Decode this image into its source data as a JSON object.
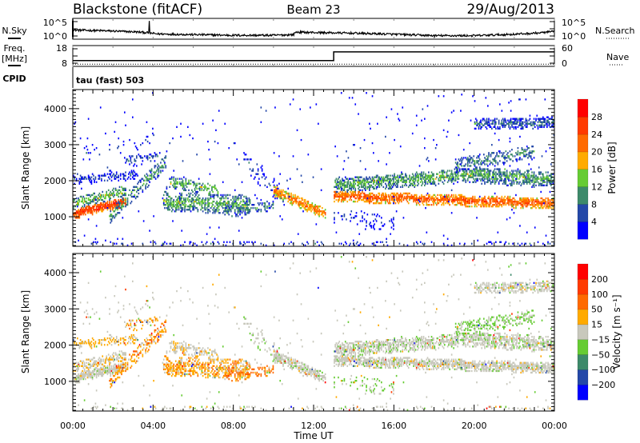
{
  "header": {
    "station": "Blackstone (fitACF)",
    "beam": "Beam 23",
    "date": "29/Aug/2013"
  },
  "noise_panel": {
    "left_label": "N.Sky",
    "right_label": "N.Search",
    "left_ticks": [
      "10^5",
      "10^0"
    ],
    "right_ticks": [
      "10^5",
      "10^0"
    ],
    "ylim_log10": [
      0,
      5
    ],
    "sky_profile_log10": [
      [
        0,
        2.6
      ],
      [
        1.5,
        2.4
      ],
      [
        3,
        2.1
      ],
      [
        3.6,
        1.9
      ],
      [
        4.2,
        1.5
      ],
      [
        6,
        1.3
      ],
      [
        8,
        1.1
      ],
      [
        10,
        1.1
      ],
      [
        11,
        1.3
      ],
      [
        11.1,
        2.0
      ],
      [
        12,
        1.9
      ],
      [
        14,
        1.7
      ],
      [
        16,
        1.4
      ],
      [
        18,
        1.0
      ],
      [
        20,
        1.0
      ],
      [
        22,
        1.4
      ],
      [
        23.3,
        1.8
      ],
      [
        24,
        2.2
      ]
    ],
    "sky_spike": {
      "time": 3.8,
      "value_log10": 5.2
    }
  },
  "freq_panel": {
    "left_label_1": "Freq.",
    "left_label_2": "[MHz]",
    "right_label": "Nave",
    "left_ticks": [
      "18",
      "8"
    ],
    "right_ticks": [
      "60",
      "0"
    ],
    "freq_lim": [
      8,
      18
    ],
    "nave_lim": [
      0,
      60
    ],
    "freq_steps": [
      [
        0,
        10.4
      ],
      [
        13,
        10.4
      ],
      [
        13,
        15.3
      ],
      [
        24,
        15.3
      ]
    ],
    "nave_value": 11
  },
  "cpid": {
    "label": "CPID",
    "value": "tau (fast) 503"
  },
  "chart_data": [
    {
      "type": "heatmap",
      "title": "Power",
      "xlabel": "Time UT",
      "ylabel": "Slant Range [km]",
      "xlim": [
        0,
        24
      ],
      "ylim": [
        180,
        4530
      ],
      "x_ticks": [
        "00:00",
        "04:00",
        "08:00",
        "12:00",
        "16:00",
        "20:00",
        "00:00"
      ],
      "y_ticks": [
        "1000",
        "2000",
        "3000",
        "4000"
      ],
      "colorbar_label": "Power [dB]",
      "colorbar_ticks": [
        "4",
        "8",
        "12",
        "16",
        "20",
        "24",
        "28"
      ],
      "colorbar_colors": [
        "#0000ff",
        "#2448a8",
        "#3d8a6a",
        "#66cc33",
        "#ffaa00",
        "#ff6a00",
        "#ff3a00",
        "#ff0000"
      ],
      "colorbar_bounds": [
        0,
        32
      ]
    },
    {
      "type": "heatmap",
      "title": "Velocity",
      "xlabel": "Time UT",
      "ylabel": "Slant Range [km]",
      "xlim": [
        0,
        24
      ],
      "ylim": [
        180,
        4530
      ],
      "x_ticks": [
        "00:00",
        "04:00",
        "08:00",
        "12:00",
        "16:00",
        "20:00",
        "00:00"
      ],
      "y_ticks": [
        "1000",
        "2000",
        "3000",
        "4000"
      ],
      "colorbar_label": "Velocity [m s⁻¹]",
      "colorbar_ticks": [
        "200",
        "100",
        "50",
        "15",
        "-15",
        "-50",
        "-100",
        "-200"
      ],
      "colorbar_colors": [
        "#0000ff",
        "#2448a8",
        "#3d8a6a",
        "#66cc33",
        "#c8c8bc",
        "#ffaa00",
        "#ff6a00",
        "#ff3a00",
        "#ff0000"
      ],
      "colorbar_bounds_ms": [
        -300,
        -200,
        -100,
        -50,
        -15,
        15,
        50,
        100,
        200,
        300
      ]
    }
  ],
  "echo_regions": [
    {
      "t": [
        0,
        2.6
      ],
      "r": [
        1050,
        1400
      ],
      "w": 250,
      "power": 27,
      "vel": 0,
      "dens": 0.95
    },
    {
      "t": [
        0,
        2.6
      ],
      "r": [
        1350,
        1700
      ],
      "w": 300,
      "power": 14,
      "vel": -10,
      "dens": 0.6
    },
    {
      "t": [
        0,
        3.2
      ],
      "r": [
        2000,
        2150
      ],
      "w": 260,
      "power": 6,
      "vel": -20,
      "dens": 0.45
    },
    {
      "t": [
        1.8,
        4.6
      ],
      "r": [
        1000,
        2500
      ],
      "w": 400,
      "power": 12,
      "vel": -40,
      "dens": 0.5
    },
    {
      "t": [
        2.5,
        4.2
      ],
      "r": [
        2500,
        2650
      ],
      "w": 300,
      "power": 7,
      "vel": -30,
      "dens": 0.3
    },
    {
      "t": [
        0.5,
        4
      ],
      "r": [
        2750,
        3100
      ],
      "w": 400,
      "power": 5,
      "vel": 0,
      "dens": 0.08
    },
    {
      "t": [
        4.5,
        8.8
      ],
      "r": [
        1400,
        1300
      ],
      "w": 500,
      "power": 13,
      "vel": -35,
      "dens": 0.6
    },
    {
      "t": [
        4.8,
        7.2
      ],
      "r": [
        1950,
        1700
      ],
      "w": 300,
      "power": 14,
      "vel": -10,
      "dens": 0.5
    },
    {
      "t": [
        7.5,
        10
      ],
      "r": [
        1100,
        1300
      ],
      "w": 300,
      "power": 10,
      "vel": -60,
      "dens": 0.4
    },
    {
      "t": [
        8.5,
        10.5
      ],
      "r": [
        2500,
        1500
      ],
      "w": 500,
      "power": 6,
      "vel": 10,
      "dens": 0.15
    },
    {
      "t": [
        10,
        12.6
      ],
      "r": [
        1700,
        1050
      ],
      "w": 300,
      "power": 22,
      "vel": 0,
      "dens": 0.8
    },
    {
      "t": [
        13,
        24
      ],
      "r": [
        1550,
        1350
      ],
      "w": 300,
      "power": 24,
      "vel": 0,
      "dens": 0.85
    },
    {
      "t": [
        13,
        20
      ],
      "r": [
        1850,
        2150
      ],
      "w": 400,
      "power": 13,
      "vel": 5,
      "dens": 0.7
    },
    {
      "t": [
        20,
        24
      ],
      "r": [
        2150,
        2000
      ],
      "w": 450,
      "power": 12,
      "vel": 5,
      "dens": 0.65
    },
    {
      "t": [
        19,
        23
      ],
      "r": [
        2400,
        2800
      ],
      "w": 400,
      "power": 10,
      "vel": 20,
      "dens": 0.4
    },
    {
      "t": [
        20,
        24
      ],
      "r": [
        3550,
        3600
      ],
      "w": 300,
      "power": 8,
      "vel": 0,
      "dens": 0.6
    },
    {
      "t": [
        13,
        16
      ],
      "r": [
        1000,
        800
      ],
      "w": 400,
      "power": 6,
      "vel": 20,
      "dens": 0.15
    },
    {
      "t": [
        0,
        24
      ],
      "r": [
        250,
        250
      ],
      "w": 100,
      "power": 6,
      "vel": 0,
      "dens": 0.15
    },
    {
      "t": [
        0,
        24
      ],
      "r": [
        2400,
        2400
      ],
      "w": 4300,
      "power": 4,
      "vel": 0,
      "dens": 0.012
    }
  ]
}
